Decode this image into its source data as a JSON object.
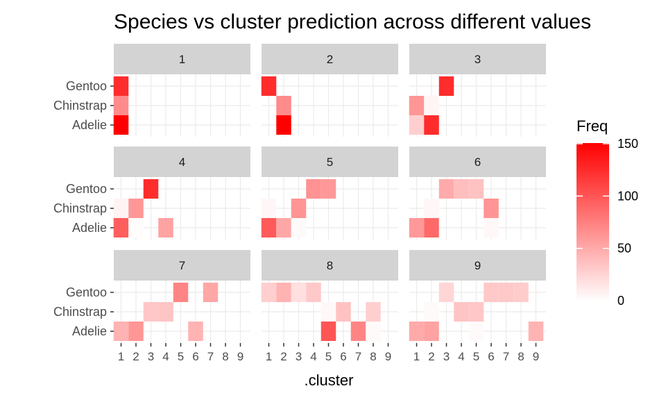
{
  "chart_data": {
    "type": "heatmap",
    "title": "Species vs cluster prediction across different values",
    "xlabel": ".cluster",
    "ylabel": "",
    "x_categories": [
      "1",
      "2",
      "3",
      "4",
      "5",
      "6",
      "7",
      "8",
      "9"
    ],
    "y_categories": [
      "Adelie",
      "Chinstrap",
      "Gentoo"
    ],
    "facets": [
      {
        "label": "1",
        "cells": [
          {
            "cluster": "1",
            "species": "Gentoo",
            "freq": 124
          },
          {
            "cluster": "1",
            "species": "Chinstrap",
            "freq": 68
          },
          {
            "cluster": "1",
            "species": "Adelie",
            "freq": 152
          }
        ]
      },
      {
        "label": "2",
        "cells": [
          {
            "cluster": "1",
            "species": "Gentoo",
            "freq": 124
          },
          {
            "cluster": "2",
            "species": "Chinstrap",
            "freq": 68
          },
          {
            "cluster": "2",
            "species": "Adelie",
            "freq": 150
          }
        ]
      },
      {
        "label": "3",
        "cells": [
          {
            "cluster": "3",
            "species": "Gentoo",
            "freq": 124
          },
          {
            "cluster": "1",
            "species": "Chinstrap",
            "freq": 62
          },
          {
            "cluster": "2",
            "species": "Chinstrap",
            "freq": 6
          },
          {
            "cluster": "1",
            "species": "Adelie",
            "freq": 28
          },
          {
            "cluster": "2",
            "species": "Adelie",
            "freq": 124
          }
        ]
      },
      {
        "label": "4",
        "cells": [
          {
            "cluster": "3",
            "species": "Gentoo",
            "freq": 124
          },
          {
            "cluster": "1",
            "species": "Chinstrap",
            "freq": 7
          },
          {
            "cluster": "2",
            "species": "Chinstrap",
            "freq": 61
          },
          {
            "cluster": "1",
            "species": "Adelie",
            "freq": 95
          },
          {
            "cluster": "2",
            "species": "Adelie",
            "freq": 2
          },
          {
            "cluster": "4",
            "species": "Adelie",
            "freq": 55
          }
        ]
      },
      {
        "label": "5",
        "cells": [
          {
            "cluster": "4",
            "species": "Gentoo",
            "freq": 64
          },
          {
            "cluster": "5",
            "species": "Gentoo",
            "freq": 60
          },
          {
            "cluster": "1",
            "species": "Chinstrap",
            "freq": 5
          },
          {
            "cluster": "3",
            "species": "Chinstrap",
            "freq": 63
          },
          {
            "cluster": "1",
            "species": "Adelie",
            "freq": 97
          },
          {
            "cluster": "2",
            "species": "Adelie",
            "freq": 52
          },
          {
            "cluster": "3",
            "species": "Adelie",
            "freq": 3
          }
        ]
      },
      {
        "label": "6",
        "cells": [
          {
            "cluster": "3",
            "species": "Gentoo",
            "freq": 50
          },
          {
            "cluster": "4",
            "species": "Gentoo",
            "freq": 38
          },
          {
            "cluster": "5",
            "species": "Gentoo",
            "freq": 36
          },
          {
            "cluster": "2",
            "species": "Chinstrap",
            "freq": 5
          },
          {
            "cluster": "6",
            "species": "Chinstrap",
            "freq": 63
          },
          {
            "cluster": "1",
            "species": "Adelie",
            "freq": 60
          },
          {
            "cluster": "2",
            "species": "Adelie",
            "freq": 88
          },
          {
            "cluster": "6",
            "species": "Adelie",
            "freq": 4
          }
        ]
      },
      {
        "label": "7",
        "cells": [
          {
            "cluster": "5",
            "species": "Gentoo",
            "freq": 72
          },
          {
            "cluster": "7",
            "species": "Gentoo",
            "freq": 52
          },
          {
            "cluster": "3",
            "species": "Chinstrap",
            "freq": 33
          },
          {
            "cluster": "4",
            "species": "Chinstrap",
            "freq": 35
          },
          {
            "cluster": "1",
            "species": "Adelie",
            "freq": 45
          },
          {
            "cluster": "2",
            "species": "Adelie",
            "freq": 62
          },
          {
            "cluster": "6",
            "species": "Adelie",
            "freq": 45
          }
        ]
      },
      {
        "label": "8",
        "cells": [
          {
            "cluster": "1",
            "species": "Gentoo",
            "freq": 28
          },
          {
            "cluster": "2",
            "species": "Gentoo",
            "freq": 45
          },
          {
            "cluster": "3",
            "species": "Gentoo",
            "freq": 19
          },
          {
            "cluster": "4",
            "species": "Gentoo",
            "freq": 32
          },
          {
            "cluster": "5",
            "species": "Chinstrap",
            "freq": 4
          },
          {
            "cluster": "6",
            "species": "Chinstrap",
            "freq": 36
          },
          {
            "cluster": "8",
            "species": "Chinstrap",
            "freq": 28
          },
          {
            "cluster": "5",
            "species": "Adelie",
            "freq": 100
          },
          {
            "cluster": "7",
            "species": "Adelie",
            "freq": 72
          },
          {
            "cluster": "8",
            "species": "Adelie",
            "freq": 3
          }
        ]
      },
      {
        "label": "9",
        "cells": [
          {
            "cluster": "3",
            "species": "Gentoo",
            "freq": 24
          },
          {
            "cluster": "6",
            "species": "Gentoo",
            "freq": 32
          },
          {
            "cluster": "7",
            "species": "Gentoo",
            "freq": 32
          },
          {
            "cluster": "8",
            "species": "Gentoo",
            "freq": 30
          },
          {
            "cluster": "2",
            "species": "Chinstrap",
            "freq": 3
          },
          {
            "cluster": "4",
            "species": "Chinstrap",
            "freq": 35
          },
          {
            "cluster": "5",
            "species": "Chinstrap",
            "freq": 33
          },
          {
            "cluster": "1",
            "species": "Adelie",
            "freq": 50
          },
          {
            "cluster": "2",
            "species": "Adelie",
            "freq": 55
          },
          {
            "cluster": "5",
            "species": "Adelie",
            "freq": 3
          },
          {
            "cluster": "9",
            "species": "Adelie",
            "freq": 44
          }
        ]
      }
    ],
    "legend": {
      "title": "Freq",
      "range": [
        0,
        150
      ],
      "ticks": [
        0,
        50,
        100,
        150
      ],
      "low_color": "#ffffff",
      "high_color": "#ff0000",
      "placement": "right"
    },
    "grid": true,
    "panel_background": "#ffffff",
    "grid_color": "#ebebeb",
    "strip_color": "#d3d3d3"
  }
}
